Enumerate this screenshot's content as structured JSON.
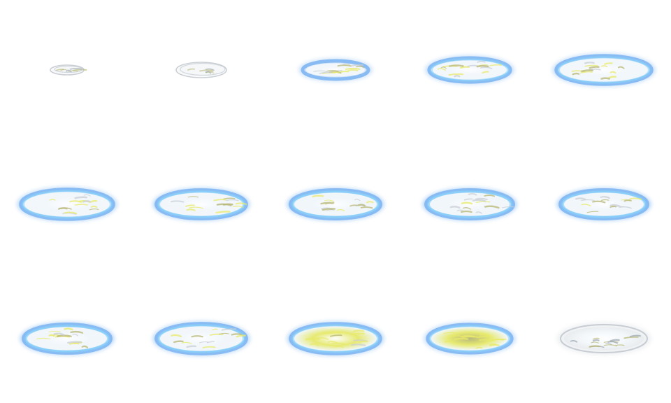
{
  "sprite_sheet": {
    "columns": 5,
    "rows": 3,
    "background": "#ffffff",
    "palette": {
      "smoke": "#c9cfd6",
      "smoke_dark": "#9ea8b3",
      "glow_blue": "#7fb6f2",
      "glow_cyan": "#8fe4ff",
      "core_white": "#f4f8fb",
      "core_yellow": "#e8ea6a",
      "core_olive": "#b8b774"
    },
    "frames": [
      {
        "index": 1,
        "effect": "smoke-ring",
        "intensity": 0.15,
        "yellow": 0.1
      },
      {
        "index": 2,
        "effect": "smoke-ring",
        "intensity": 0.3,
        "yellow": 0.15
      },
      {
        "index": 3,
        "effect": "charging",
        "intensity": 0.45,
        "yellow": 0.35
      },
      {
        "index": 4,
        "effect": "charging",
        "intensity": 0.6,
        "yellow": 0.45
      },
      {
        "index": 5,
        "effect": "charging",
        "intensity": 0.7,
        "yellow": 0.5
      },
      {
        "index": 6,
        "effect": "glowing",
        "intensity": 0.8,
        "yellow": 0.45
      },
      {
        "index": 7,
        "effect": "glowing",
        "intensity": 0.9,
        "yellow": 0.4
      },
      {
        "index": 8,
        "effect": "glowing",
        "intensity": 1.0,
        "yellow": 0.3
      },
      {
        "index": 9,
        "effect": "glowing",
        "intensity": 1.0,
        "yellow": 0.25
      },
      {
        "index": 10,
        "effect": "glowing",
        "intensity": 0.95,
        "yellow": 0.35
      },
      {
        "index": 11,
        "effect": "glowing",
        "intensity": 0.95,
        "yellow": 0.4
      },
      {
        "index": 12,
        "effect": "glowing",
        "intensity": 0.9,
        "yellow": 0.45
      },
      {
        "index": 13,
        "effect": "bursting",
        "intensity": 0.8,
        "yellow": 0.75
      },
      {
        "index": 14,
        "effect": "bursting",
        "intensity": 0.65,
        "yellow": 1.0
      },
      {
        "index": 15,
        "effect": "fading",
        "intensity": 0.1,
        "yellow": 0.2
      }
    ]
  }
}
